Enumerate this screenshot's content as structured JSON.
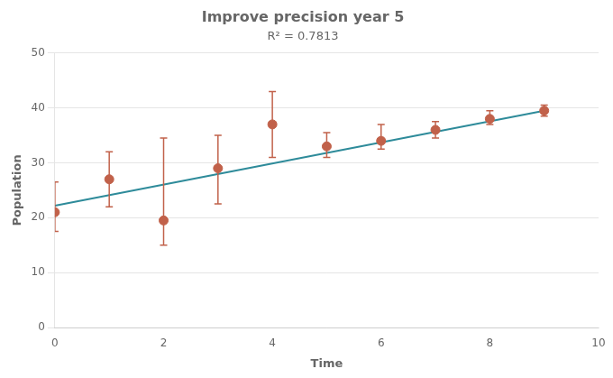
{
  "chart_data": {
    "type": "scatter",
    "title": "Improve precision year 5",
    "subtitle": "R² = 0.7813",
    "xlabel": "Time",
    "ylabel": "Population",
    "xlim": [
      0,
      10
    ],
    "ylim": [
      0,
      50
    ],
    "xticks": [
      0,
      2,
      4,
      6,
      8,
      10
    ],
    "yticks": [
      0,
      10,
      20,
      30,
      40,
      50
    ],
    "grid": "y",
    "series": [
      {
        "type": "scatter",
        "color": "#C1614A",
        "marker": "circle",
        "x": [
          0,
          1,
          2,
          3,
          4,
          5,
          6,
          7,
          8,
          9
        ],
        "values": [
          21.0,
          27.0,
          19.5,
          29.0,
          37.0,
          33.0,
          34.0,
          36.0,
          38.0,
          39.5
        ],
        "yerr_low": [
          3.5,
          5.0,
          4.5,
          6.5,
          6.0,
          2.0,
          1.5,
          1.5,
          1.0,
          1.0
        ],
        "yerr_high": [
          5.5,
          5.0,
          15.0,
          6.0,
          6.0,
          2.5,
          3.0,
          1.5,
          1.5,
          1.0
        ]
      },
      {
        "type": "line",
        "color": "#2E8B9A",
        "line_style": "solid",
        "x": [
          0,
          9
        ],
        "values": [
          22.2,
          39.5
        ]
      }
    ]
  }
}
